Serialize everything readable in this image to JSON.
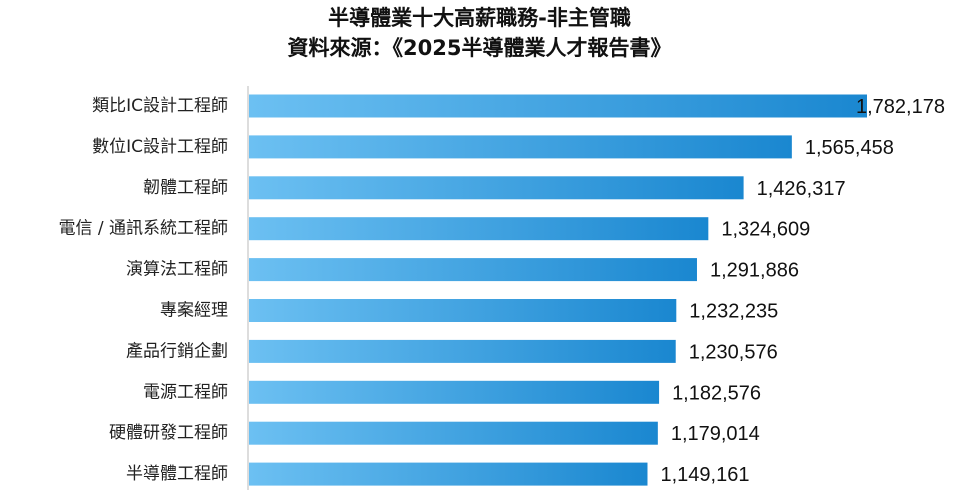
{
  "title": {
    "line1": "半導體業十大高薪職務-非主管職",
    "line2": "資料來源：《2025半導體業人才報告書》"
  },
  "colors": {
    "bar_light": "#6cc0f2",
    "bar_dark": "#1a87d0",
    "axis": "#bbbbbb"
  },
  "chart_data": {
    "type": "bar",
    "orientation": "horizontal",
    "title": "半導體業十大高薪職務-非主管職",
    "subtitle": "資料來源：《2025半導體業人才報告書》",
    "categories": [
      "類比IC設計工程師",
      "數位IC設計工程師",
      "韌體工程師",
      "電信 / 通訊系統工程師",
      "演算法工程師",
      "專案經理",
      "產品行銷企劃",
      "電源工程師",
      "硬體研發工程師",
      "半導體工程師"
    ],
    "values": [
      1782178,
      1565458,
      1426317,
      1324609,
      1291886,
      1232235,
      1230576,
      1182576,
      1179014,
      1149161
    ],
    "value_labels": [
      "1,782,178",
      "1,565,458",
      "1,426,317",
      "1,324,609",
      "1,291,886",
      "1,232,235",
      "1,230,576",
      "1,182,576",
      "1,179,014",
      "1,149,161"
    ],
    "xlim": [
      0,
      1782178
    ],
    "xlabel": "",
    "ylabel": "",
    "grid": false,
    "legend": "none"
  }
}
